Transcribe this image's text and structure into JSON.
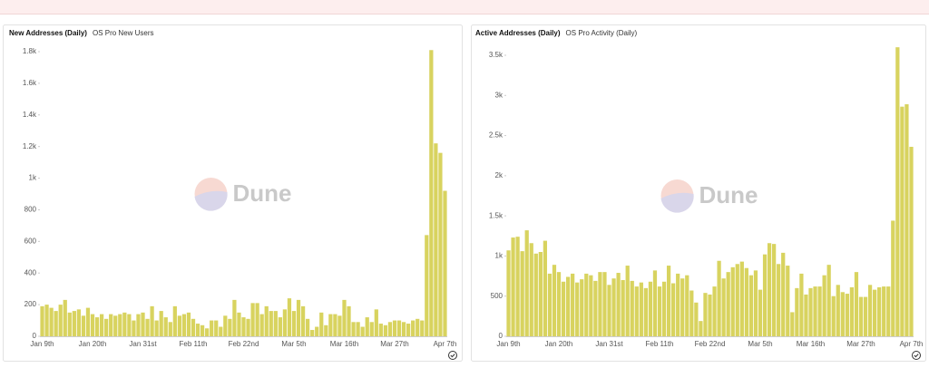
{
  "chart_data": [
    {
      "type": "bar",
      "title": "New Addresses (Daily)",
      "subtitle": "OS Pro New Users",
      "watermark": "Dune",
      "color": "#d8d35f",
      "grid": false,
      "categories": [
        "Jan 9th",
        null,
        null,
        null,
        null,
        null,
        null,
        null,
        null,
        null,
        null,
        "Jan 20th",
        null,
        null,
        null,
        null,
        null,
        null,
        null,
        null,
        null,
        null,
        "Jan 31st",
        null,
        null,
        null,
        null,
        null,
        null,
        null,
        null,
        null,
        null,
        "Feb 11th",
        null,
        null,
        null,
        null,
        null,
        null,
        null,
        null,
        null,
        null,
        "Feb 22nd",
        null,
        null,
        null,
        null,
        null,
        null,
        null,
        null,
        null,
        null,
        "Mar 5th",
        null,
        null,
        null,
        null,
        null,
        null,
        null,
        null,
        null,
        null,
        "Mar 16th",
        null,
        null,
        null,
        null,
        null,
        null,
        null,
        null,
        null,
        null,
        "Mar 27th",
        null,
        null,
        null,
        null,
        null,
        null,
        null,
        null,
        null,
        null,
        "Apr 7th"
      ],
      "values": [
        190,
        200,
        180,
        160,
        200,
        230,
        150,
        160,
        170,
        130,
        180,
        140,
        120,
        140,
        110,
        140,
        130,
        140,
        150,
        140,
        100,
        140,
        150,
        110,
        190,
        100,
        160,
        120,
        90,
        190,
        130,
        140,
        150,
        110,
        80,
        70,
        50,
        100,
        100,
        60,
        130,
        110,
        230,
        150,
        120,
        110,
        210,
        210,
        140,
        190,
        160,
        160,
        120,
        170,
        240,
        160,
        230,
        190,
        110,
        40,
        60,
        150,
        70,
        140,
        140,
        130,
        230,
        190,
        90,
        90,
        60,
        120,
        90,
        170,
        80,
        70,
        90,
        100,
        100,
        90,
        80,
        100,
        110,
        100,
        640,
        1810,
        1220,
        1160,
        920
      ],
      "ylim": [
        0,
        1800
      ],
      "yticks": [
        0,
        200,
        400,
        600,
        800,
        {
          "value": 1000,
          "label": "1k"
        },
        {
          "value": 1200,
          "label": "1.2k"
        },
        {
          "value": 1400,
          "label": "1.4k"
        },
        {
          "value": 1600,
          "label": "1.6k"
        },
        {
          "value": 1800,
          "label": "1.8k"
        }
      ]
    },
    {
      "type": "bar",
      "title": "Active Addresses (Daily)",
      "subtitle": "OS Pro Activity (Daily)",
      "watermark": "Dune",
      "color": "#d8d35f",
      "grid": false,
      "categories": [
        "Jan 9th",
        null,
        null,
        null,
        null,
        null,
        null,
        null,
        null,
        null,
        null,
        "Jan 20th",
        null,
        null,
        null,
        null,
        null,
        null,
        null,
        null,
        null,
        null,
        "Jan 31st",
        null,
        null,
        null,
        null,
        null,
        null,
        null,
        null,
        null,
        null,
        "Feb 11th",
        null,
        null,
        null,
        null,
        null,
        null,
        null,
        null,
        null,
        null,
        "Feb 22nd",
        null,
        null,
        null,
        null,
        null,
        null,
        null,
        null,
        null,
        null,
        "Mar 5th",
        null,
        null,
        null,
        null,
        null,
        null,
        null,
        null,
        null,
        null,
        "Mar 16th",
        null,
        null,
        null,
        null,
        null,
        null,
        null,
        null,
        null,
        null,
        "Mar 27th",
        null,
        null,
        null,
        null,
        null,
        null,
        null,
        null,
        null,
        null,
        "Apr 7th"
      ],
      "values": [
        1070,
        1230,
        1240,
        1060,
        1320,
        1160,
        1030,
        1050,
        1190,
        780,
        890,
        800,
        680,
        740,
        780,
        670,
        710,
        780,
        760,
        690,
        800,
        800,
        640,
        720,
        790,
        700,
        880,
        690,
        620,
        670,
        600,
        680,
        820,
        620,
        680,
        880,
        660,
        780,
        720,
        760,
        570,
        420,
        190,
        540,
        520,
        620,
        940,
        720,
        800,
        860,
        900,
        930,
        850,
        760,
        820,
        580,
        1020,
        1160,
        1150,
        900,
        1040,
        880,
        300,
        600,
        780,
        520,
        600,
        620,
        620,
        760,
        890,
        500,
        640,
        550,
        530,
        610,
        800,
        490,
        490,
        640,
        580,
        610,
        620,
        620,
        1440,
        3600,
        2860,
        2890,
        2360
      ],
      "ylim": [
        0,
        3500
      ],
      "yticks": [
        0,
        500,
        {
          "value": 1000,
          "label": "1k"
        },
        {
          "value": 1500,
          "label": "1.5k"
        },
        {
          "value": 2000,
          "label": "2k"
        },
        {
          "value": 2500,
          "label": "2.5k"
        },
        {
          "value": 3000,
          "label": "3k"
        },
        {
          "value": 3500,
          "label": "3.5k"
        }
      ]
    }
  ]
}
